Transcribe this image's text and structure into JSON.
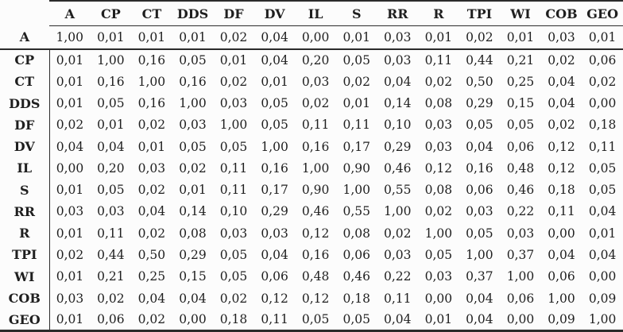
{
  "table": {
    "corner_label": "",
    "columns": [
      "A",
      "CP",
      "CT",
      "DDS",
      "DF",
      "DV",
      "IL",
      "S",
      "RR",
      "R",
      "TPI",
      "WI",
      "COB",
      "GEO"
    ],
    "rows": [
      {
        "label": "A",
        "values": [
          "1,00",
          "0,01",
          "0,01",
          "0,01",
          "0,02",
          "0,04",
          "0,00",
          "0,01",
          "0,03",
          "0,01",
          "0,02",
          "0,01",
          "0,03",
          "0,01"
        ]
      },
      {
        "label": "CP",
        "values": [
          "0,01",
          "1,00",
          "0,16",
          "0,05",
          "0,01",
          "0,04",
          "0,20",
          "0,05",
          "0,03",
          "0,11",
          "0,44",
          "0,21",
          "0,02",
          "0,06"
        ]
      },
      {
        "label": "CT",
        "values": [
          "0,01",
          "0,16",
          "1,00",
          "0,16",
          "0,02",
          "0,01",
          "0,03",
          "0,02",
          "0,04",
          "0,02",
          "0,50",
          "0,25",
          "0,04",
          "0,02"
        ]
      },
      {
        "label": "DDS",
        "values": [
          "0,01",
          "0,05",
          "0,16",
          "1,00",
          "0,03",
          "0,05",
          "0,02",
          "0,01",
          "0,14",
          "0,08",
          "0,29",
          "0,15",
          "0,04",
          "0,00"
        ]
      },
      {
        "label": "DF",
        "values": [
          "0,02",
          "0,01",
          "0,02",
          "0,03",
          "1,00",
          "0,05",
          "0,11",
          "0,11",
          "0,10",
          "0,03",
          "0,05",
          "0,05",
          "0,02",
          "0,18"
        ]
      },
      {
        "label": "DV",
        "values": [
          "0,04",
          "0,04",
          "0,01",
          "0,05",
          "0,05",
          "1,00",
          "0,16",
          "0,17",
          "0,29",
          "0,03",
          "0,04",
          "0,06",
          "0,12",
          "0,11"
        ]
      },
      {
        "label": "IL",
        "values": [
          "0,00",
          "0,20",
          "0,03",
          "0,02",
          "0,11",
          "0,16",
          "1,00",
          "0,90",
          "0,46",
          "0,12",
          "0,16",
          "0,48",
          "0,12",
          "0,05"
        ]
      },
      {
        "label": "S",
        "values": [
          "0,01",
          "0,05",
          "0,02",
          "0,01",
          "0,11",
          "0,17",
          "0,90",
          "1,00",
          "0,55",
          "0,08",
          "0,06",
          "0,46",
          "0,18",
          "0,05"
        ]
      },
      {
        "label": "RR",
        "values": [
          "0,03",
          "0,03",
          "0,04",
          "0,14",
          "0,10",
          "0,29",
          "0,46",
          "0,55",
          "1,00",
          "0,02",
          "0,03",
          "0,22",
          "0,11",
          "0,04"
        ]
      },
      {
        "label": "R",
        "values": [
          "0,01",
          "0,11",
          "0,02",
          "0,08",
          "0,03",
          "0,03",
          "0,12",
          "0,08",
          "0,02",
          "1,00",
          "0,05",
          "0,03",
          "0,00",
          "0,01"
        ]
      },
      {
        "label": "TPI",
        "values": [
          "0,02",
          "0,44",
          "0,50",
          "0,29",
          "0,05",
          "0,04",
          "0,16",
          "0,06",
          "0,03",
          "0,05",
          "1,00",
          "0,37",
          "0,04",
          "0,04"
        ]
      },
      {
        "label": "WI",
        "values": [
          "0,01",
          "0,21",
          "0,25",
          "0,15",
          "0,05",
          "0,06",
          "0,48",
          "0,46",
          "0,22",
          "0,03",
          "0,37",
          "1,00",
          "0,06",
          "0,00"
        ]
      },
      {
        "label": "COB",
        "values": [
          "0,03",
          "0,02",
          "0,04",
          "0,04",
          "0,02",
          "0,12",
          "0,12",
          "0,18",
          "0,11",
          "0,00",
          "0,04",
          "0,06",
          "1,00",
          "0,09"
        ]
      },
      {
        "label": "GEO",
        "values": [
          "0,01",
          "0,06",
          "0,02",
          "0,00",
          "0,18",
          "0,11",
          "0,05",
          "0,05",
          "0,04",
          "0,01",
          "0,04",
          "0,00",
          "0,09",
          "1,00"
        ]
      }
    ],
    "style": {
      "rule_color": "#2b2b2b",
      "text_color": "#1f1f1f",
      "background": "#fcfcfc"
    }
  },
  "chart_data": {
    "type": "table",
    "title": "",
    "categories": [
      "A",
      "CP",
      "CT",
      "DDS",
      "DF",
      "DV",
      "IL",
      "S",
      "RR",
      "R",
      "TPI",
      "WI",
      "COB",
      "GEO"
    ],
    "matrix": [
      [
        1.0,
        0.01,
        0.01,
        0.01,
        0.02,
        0.04,
        0.0,
        0.01,
        0.03,
        0.01,
        0.02,
        0.01,
        0.03,
        0.01
      ],
      [
        0.01,
        1.0,
        0.16,
        0.05,
        0.01,
        0.04,
        0.2,
        0.05,
        0.03,
        0.11,
        0.44,
        0.21,
        0.02,
        0.06
      ],
      [
        0.01,
        0.16,
        1.0,
        0.16,
        0.02,
        0.01,
        0.03,
        0.02,
        0.04,
        0.02,
        0.5,
        0.25,
        0.04,
        0.02
      ],
      [
        0.01,
        0.05,
        0.16,
        1.0,
        0.03,
        0.05,
        0.02,
        0.01,
        0.14,
        0.08,
        0.29,
        0.15,
        0.04,
        0.0
      ],
      [
        0.02,
        0.01,
        0.02,
        0.03,
        1.0,
        0.05,
        0.11,
        0.11,
        0.1,
        0.03,
        0.05,
        0.05,
        0.02,
        0.18
      ],
      [
        0.04,
        0.04,
        0.01,
        0.05,
        0.05,
        1.0,
        0.16,
        0.17,
        0.29,
        0.03,
        0.04,
        0.06,
        0.12,
        0.11
      ],
      [
        0.0,
        0.2,
        0.03,
        0.02,
        0.11,
        0.16,
        1.0,
        0.9,
        0.46,
        0.12,
        0.16,
        0.48,
        0.12,
        0.05
      ],
      [
        0.01,
        0.05,
        0.02,
        0.01,
        0.11,
        0.17,
        0.9,
        1.0,
        0.55,
        0.08,
        0.06,
        0.46,
        0.18,
        0.05
      ],
      [
        0.03,
        0.03,
        0.04,
        0.14,
        0.1,
        0.29,
        0.46,
        0.55,
        1.0,
        0.02,
        0.03,
        0.22,
        0.11,
        0.04
      ],
      [
        0.01,
        0.11,
        0.02,
        0.08,
        0.03,
        0.03,
        0.12,
        0.08,
        0.02,
        1.0,
        0.05,
        0.03,
        0.0,
        0.01
      ],
      [
        0.02,
        0.44,
        0.5,
        0.29,
        0.05,
        0.04,
        0.16,
        0.06,
        0.03,
        0.05,
        1.0,
        0.37,
        0.04,
        0.04
      ],
      [
        0.01,
        0.21,
        0.25,
        0.15,
        0.05,
        0.06,
        0.48,
        0.46,
        0.22,
        0.03,
        0.37,
        1.0,
        0.06,
        0.0
      ],
      [
        0.03,
        0.02,
        0.04,
        0.04,
        0.02,
        0.12,
        0.12,
        0.18,
        0.11,
        0.0,
        0.04,
        0.06,
        1.0,
        0.09
      ],
      [
        0.01,
        0.06,
        0.02,
        0.0,
        0.18,
        0.11,
        0.05,
        0.05,
        0.04,
        0.01,
        0.04,
        0.0,
        0.09,
        1.0
      ]
    ],
    "decimal_separator": ","
  }
}
